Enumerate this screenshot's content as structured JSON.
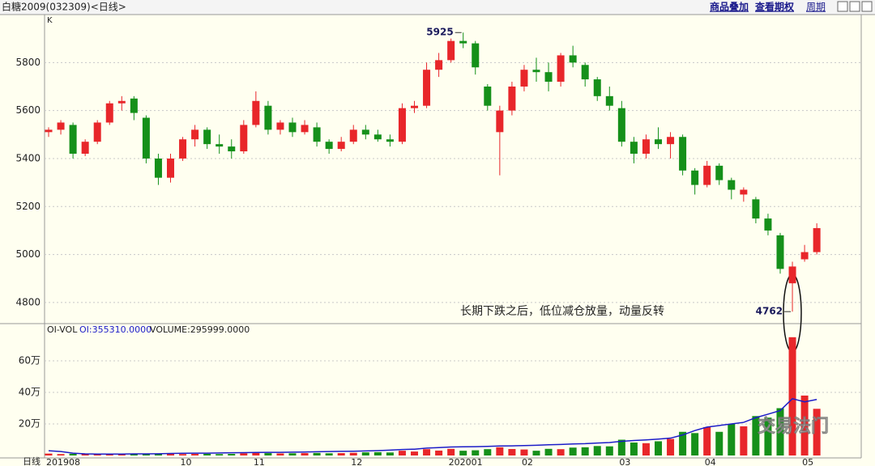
{
  "header": {
    "title": "白糖2009(032309)<日线>",
    "buttons": [
      "商品叠加",
      "查看期权",
      "周期"
    ]
  },
  "chart_data": {
    "type": "candlestick",
    "panel_label": "K",
    "period_label": "日线",
    "categories": [
      "201908",
      null,
      null,
      null,
      null,
      null,
      null,
      null,
      null,
      null,
      null,
      "10",
      null,
      null,
      null,
      null,
      null,
      "11",
      null,
      null,
      null,
      null,
      null,
      null,
      null,
      "12",
      null,
      null,
      null,
      null,
      null,
      null,
      null,
      "202001",
      null,
      null,
      null,
      null,
      null,
      "02",
      null,
      null,
      null,
      null,
      null,
      null,
      null,
      "03",
      null,
      null,
      null,
      null,
      null,
      null,
      "04",
      null,
      null,
      null,
      null,
      null,
      null,
      null,
      "05",
      null
    ],
    "open": [
      5510,
      5520,
      5540,
      5420,
      5470,
      5550,
      5630,
      5650,
      5570,
      5400,
      5320,
      5400,
      5480,
      5520,
      5460,
      5450,
      5430,
      5540,
      5620,
      5520,
      5550,
      5510,
      5530,
      5470,
      5440,
      5470,
      5520,
      5500,
      5480,
      5470,
      5610,
      5620,
      5770,
      5810,
      5890,
      5880,
      5700,
      5510,
      5600,
      5700,
      5770,
      5760,
      5720,
      5830,
      5790,
      5730,
      5660,
      5610,
      5470,
      5420,
      5480,
      5460,
      5490,
      5350,
      5290,
      5370,
      5310,
      5250,
      5230,
      5150,
      5080,
      4880,
      4980,
      5010
    ],
    "high": [
      5530,
      5560,
      5550,
      5480,
      5560,
      5640,
      5660,
      5660,
      5580,
      5420,
      5420,
      5490,
      5540,
      5530,
      5500,
      5480,
      5560,
      5680,
      5640,
      5560,
      5570,
      5560,
      5550,
      5480,
      5490,
      5540,
      5540,
      5520,
      5500,
      5630,
      5640,
      5800,
      5840,
      5900,
      5925,
      5890,
      5710,
      5620,
      5720,
      5790,
      5820,
      5800,
      5840,
      5870,
      5800,
      5740,
      5700,
      5640,
      5490,
      5500,
      5530,
      5510,
      5500,
      5360,
      5390,
      5380,
      5320,
      5280,
      5240,
      5170,
      5090,
      4970,
      5040,
      5130
    ],
    "low": [
      5490,
      5500,
      5400,
      5410,
      5460,
      5540,
      5600,
      5560,
      5380,
      5290,
      5300,
      5390,
      5450,
      5440,
      5420,
      5400,
      5420,
      5530,
      5500,
      5500,
      5490,
      5500,
      5450,
      5420,
      5430,
      5460,
      5480,
      5470,
      5450,
      5460,
      5590,
      5610,
      5740,
      5800,
      5860,
      5750,
      5600,
      5330,
      5580,
      5680,
      5720,
      5680,
      5700,
      5780,
      5700,
      5640,
      5600,
      5450,
      5380,
      5400,
      5440,
      5400,
      5330,
      5250,
      5280,
      5290,
      5230,
      5220,
      5130,
      5080,
      4920,
      4762,
      4970,
      5000
    ],
    "close": [
      5520,
      5550,
      5420,
      5470,
      5550,
      5630,
      5640,
      5590,
      5400,
      5320,
      5400,
      5480,
      5520,
      5460,
      5450,
      5430,
      5540,
      5640,
      5520,
      5550,
      5510,
      5540,
      5470,
      5440,
      5470,
      5520,
      5500,
      5480,
      5470,
      5610,
      5620,
      5770,
      5810,
      5890,
      5880,
      5780,
      5620,
      5600,
      5700,
      5770,
      5760,
      5720,
      5830,
      5800,
      5730,
      5660,
      5620,
      5470,
      5420,
      5480,
      5460,
      5490,
      5350,
      5290,
      5370,
      5310,
      5270,
      5270,
      5150,
      5100,
      4940,
      4950,
      5010,
      5110
    ],
    "up_color": "#e8262a",
    "down_color": "#15901a",
    "ylim": [
      4712,
      6000
    ],
    "yticks": [
      4800,
      5000,
      5200,
      5400,
      5600,
      5800
    ],
    "grid": true,
    "high_annotation": 5925,
    "low_annotation": 4762,
    "note": "长期下跌之后，低位减仓放量，动量反转",
    "watermark": "交易法门",
    "volume_panel": {
      "title": "OI-VOL",
      "oi_label": "OI:355310.0000",
      "volume_label": "VOLUME:295999.0000",
      "volume": [
        12000,
        9000,
        11000,
        8000,
        10000,
        9000,
        8000,
        9000,
        11000,
        12000,
        10000,
        9000,
        10000,
        11000,
        9000,
        10000,
        14000,
        16000,
        15000,
        13000,
        14000,
        15000,
        16000,
        14000,
        15000,
        17000,
        20000,
        21000,
        19000,
        30000,
        25000,
        40000,
        31000,
        42000,
        30000,
        33000,
        40000,
        52000,
        41000,
        38000,
        30000,
        42000,
        40000,
        50000,
        52000,
        60000,
        58000,
        100000,
        82000,
        78000,
        90000,
        105000,
        150000,
        142000,
        180000,
        150000,
        200000,
        185000,
        250000,
        240000,
        300000,
        750000,
        380000,
        295999
      ],
      "oi": [
        30000,
        25000,
        15000,
        10000,
        9000,
        9000,
        9000,
        10000,
        10000,
        11000,
        13000,
        14000,
        15000,
        15000,
        16000,
        17000,
        18000,
        19000,
        20000,
        20000,
        21000,
        22000,
        24000,
        25000,
        26000,
        27000,
        29000,
        31000,
        34000,
        38000,
        40000,
        47000,
        50000,
        54000,
        55000,
        56000,
        58000,
        60000,
        61000,
        63000,
        65000,
        68000,
        70000,
        73000,
        75000,
        79000,
        82000,
        90000,
        95000,
        99000,
        104000,
        110000,
        130000,
        158000,
        180000,
        190000,
        200000,
        210000,
        240000,
        262000,
        285000,
        360000,
        340000,
        355310
      ],
      "oi_color": "#1c1cc8",
      "ylim": [
        0,
        826000
      ],
      "yticks": [
        {
          "value": 200000,
          "label": "20万"
        },
        {
          "value": 400000,
          "label": "40万"
        },
        {
          "value": 600000,
          "label": "60万"
        }
      ]
    }
  }
}
